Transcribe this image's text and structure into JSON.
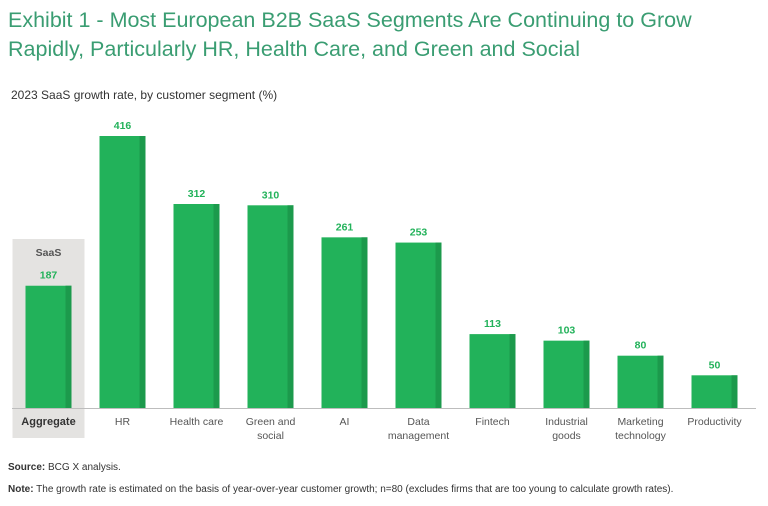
{
  "title": "Exhibit 1 - Most European B2B SaaS Segments Are Continuing to Grow Rapidly, Particularly HR, Health Care, and Green and Social",
  "subtitle": "2023 SaaS growth rate, by customer segment (%)",
  "footer": {
    "source_label": "Source:",
    "source_text": "BCG X analysis.",
    "note_label": "Note:",
    "note_text": "The growth rate is estimated on the basis of year-over-year customer growth; n=80 (excludes firms that are too young to calculate growth rates)."
  },
  "colors": {
    "bar": "#22b25a",
    "bar_shade": "#1c9a4c",
    "label": "#22b25a",
    "highlight_bg": "#e4e3e1",
    "title": "#3a9d72"
  },
  "chart_data": {
    "type": "bar",
    "title": "2023 SaaS growth rate, by customer segment (%)",
    "xlabel": "",
    "ylabel": "",
    "ylim": [
      0,
      416
    ],
    "grid": false,
    "highlight": {
      "category": "Aggregate",
      "header": "SaaS"
    },
    "categories": [
      [
        "Aggregate"
      ],
      [
        "HR"
      ],
      [
        "Health care"
      ],
      [
        "Green and",
        "social"
      ],
      [
        "AI"
      ],
      [
        "Data",
        "management"
      ],
      [
        "Fintech"
      ],
      [
        "Industrial",
        "goods"
      ],
      [
        "Marketing",
        "technology"
      ],
      [
        "Productivity"
      ]
    ],
    "values": [
      187,
      416,
      312,
      310,
      261,
      253,
      113,
      103,
      80,
      50
    ]
  }
}
